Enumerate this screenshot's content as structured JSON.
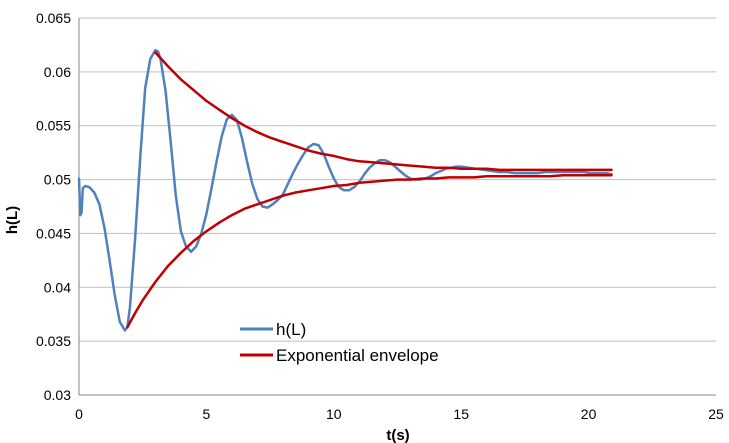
{
  "chart_data": {
    "type": "line",
    "title": "",
    "xlabel": "t(s)",
    "ylabel": "h(L)",
    "xlim": [
      0,
      25
    ],
    "ylim": [
      0.03,
      0.065
    ],
    "x_ticks": [
      "0",
      "5",
      "10",
      "15",
      "20",
      "25"
    ],
    "y_ticks": [
      "0.03",
      "0.035",
      "0.04",
      "0.045",
      "0.05",
      "0.055",
      "0.06",
      "0.065"
    ],
    "grid": "horizontal",
    "legend_position": "center-bottom",
    "series": [
      {
        "name": "h(L)",
        "color": "#4F81BD",
        "x": [
          0.0,
          0.05,
          0.1,
          0.15,
          0.25,
          0.4,
          0.6,
          0.8,
          1.0,
          1.2,
          1.4,
          1.6,
          1.8,
          1.9,
          2.0,
          2.2,
          2.4,
          2.6,
          2.8,
          3.0,
          3.1,
          3.2,
          3.4,
          3.6,
          3.8,
          4.0,
          4.2,
          4.4,
          4.6,
          4.8,
          5.0,
          5.2,
          5.4,
          5.6,
          5.8,
          6.0,
          6.2,
          6.4,
          6.6,
          6.8,
          7.0,
          7.2,
          7.4,
          7.6,
          7.8,
          8.0,
          8.2,
          8.4,
          8.6,
          8.8,
          9.0,
          9.2,
          9.4,
          9.6,
          9.8,
          10.0,
          10.2,
          10.4,
          10.6,
          10.8,
          11.0,
          11.2,
          11.4,
          11.6,
          11.8,
          12.0,
          12.2,
          12.4,
          12.6,
          12.8,
          13.0,
          13.2,
          13.4,
          13.6,
          13.8,
          14.0,
          14.2,
          14.4,
          14.6,
          14.8,
          15.0,
          15.3,
          15.6,
          15.9,
          16.2,
          16.5,
          16.8,
          17.1,
          17.4,
          17.7,
          18.0,
          18.3,
          18.6,
          18.9,
          19.2,
          19.5,
          19.8,
          20.1,
          20.4,
          20.7,
          20.9
        ],
        "values": [
          0.0501,
          0.0467,
          0.0469,
          0.0492,
          0.0494,
          0.0493,
          0.0488,
          0.0477,
          0.0455,
          0.0425,
          0.0393,
          0.0368,
          0.036,
          0.0363,
          0.0382,
          0.0445,
          0.052,
          0.0585,
          0.0612,
          0.062,
          0.0619,
          0.0612,
          0.0582,
          0.0535,
          0.0485,
          0.0452,
          0.0438,
          0.0433,
          0.0438,
          0.045,
          0.0468,
          0.0492,
          0.0517,
          0.054,
          0.0556,
          0.056,
          0.0555,
          0.0538,
          0.0516,
          0.0496,
          0.0482,
          0.0475,
          0.0474,
          0.0477,
          0.0481,
          0.0486,
          0.0496,
          0.0506,
          0.0515,
          0.0523,
          0.053,
          0.0533,
          0.0532,
          0.0524,
          0.0512,
          0.0501,
          0.0493,
          0.049,
          0.049,
          0.0493,
          0.0498,
          0.0505,
          0.0511,
          0.0515,
          0.0518,
          0.0518,
          0.0516,
          0.0512,
          0.0508,
          0.0504,
          0.0501,
          0.05,
          0.05,
          0.0501,
          0.0503,
          0.0506,
          0.0508,
          0.051,
          0.0511,
          0.0512,
          0.0512,
          0.0511,
          0.051,
          0.0509,
          0.0508,
          0.0507,
          0.0507,
          0.0506,
          0.0506,
          0.0506,
          0.0506,
          0.0507,
          0.0507,
          0.0507,
          0.0507,
          0.0507,
          0.0507,
          0.0506,
          0.0506,
          0.0506,
          0.0505
        ]
      },
      {
        "name": "Exponential envelope",
        "color": "#C00000",
        "x": [
          3.0,
          3.5,
          4.0,
          4.5,
          5.0,
          5.5,
          6.0,
          6.5,
          7.0,
          7.5,
          8.0,
          8.5,
          9.0,
          9.5,
          10.0,
          10.5,
          11.0,
          11.5,
          12.0,
          12.5,
          13.0,
          13.5,
          14.0,
          14.5,
          15.0,
          15.5,
          16.0,
          16.5,
          17.0,
          17.5,
          18.0,
          18.5,
          19.0,
          19.5,
          20.0,
          20.5,
          20.9
        ],
        "values": [
          0.0618,
          0.0605,
          0.0593,
          0.0583,
          0.0573,
          0.0565,
          0.0557,
          0.055,
          0.0544,
          0.0539,
          0.0535,
          0.0531,
          0.0527,
          0.0524,
          0.0522,
          0.0519,
          0.0517,
          0.0516,
          0.0515,
          0.0514,
          0.0513,
          0.0512,
          0.0511,
          0.0511,
          0.051,
          0.051,
          0.051,
          0.0509,
          0.0509,
          0.0509,
          0.0509,
          0.0509,
          0.0509,
          0.0509,
          0.0509,
          0.0509,
          0.0509
        ]
      },
      {
        "name": "",
        "color": "#C00000",
        "x": [
          1.9,
          2.2,
          2.5,
          3.0,
          3.5,
          4.0,
          4.5,
          5.0,
          5.5,
          6.0,
          6.5,
          7.0,
          7.5,
          8.0,
          8.5,
          9.0,
          9.5,
          10.0,
          10.5,
          11.0,
          11.5,
          12.0,
          12.5,
          13.0,
          13.5,
          14.0,
          14.5,
          15.0,
          15.5,
          16.0,
          16.5,
          17.0,
          17.5,
          18.0,
          18.5,
          19.0,
          19.5,
          20.0,
          20.5,
          20.9
        ],
        "values": [
          0.0363,
          0.0376,
          0.0388,
          0.0405,
          0.042,
          0.0432,
          0.0443,
          0.0452,
          0.046,
          0.0467,
          0.0473,
          0.0477,
          0.0481,
          0.0485,
          0.0488,
          0.049,
          0.0492,
          0.0494,
          0.0495,
          0.0497,
          0.0498,
          0.0499,
          0.05,
          0.05,
          0.0501,
          0.0501,
          0.0502,
          0.0502,
          0.0502,
          0.0503,
          0.0503,
          0.0503,
          0.0503,
          0.0503,
          0.0503,
          0.0504,
          0.0504,
          0.0504,
          0.0504,
          0.0504
        ]
      }
    ]
  },
  "colors": {
    "grid": "#BFBFBF",
    "axis": "#868686",
    "series_blue": "#4F81BD",
    "series_red": "#C00000"
  }
}
